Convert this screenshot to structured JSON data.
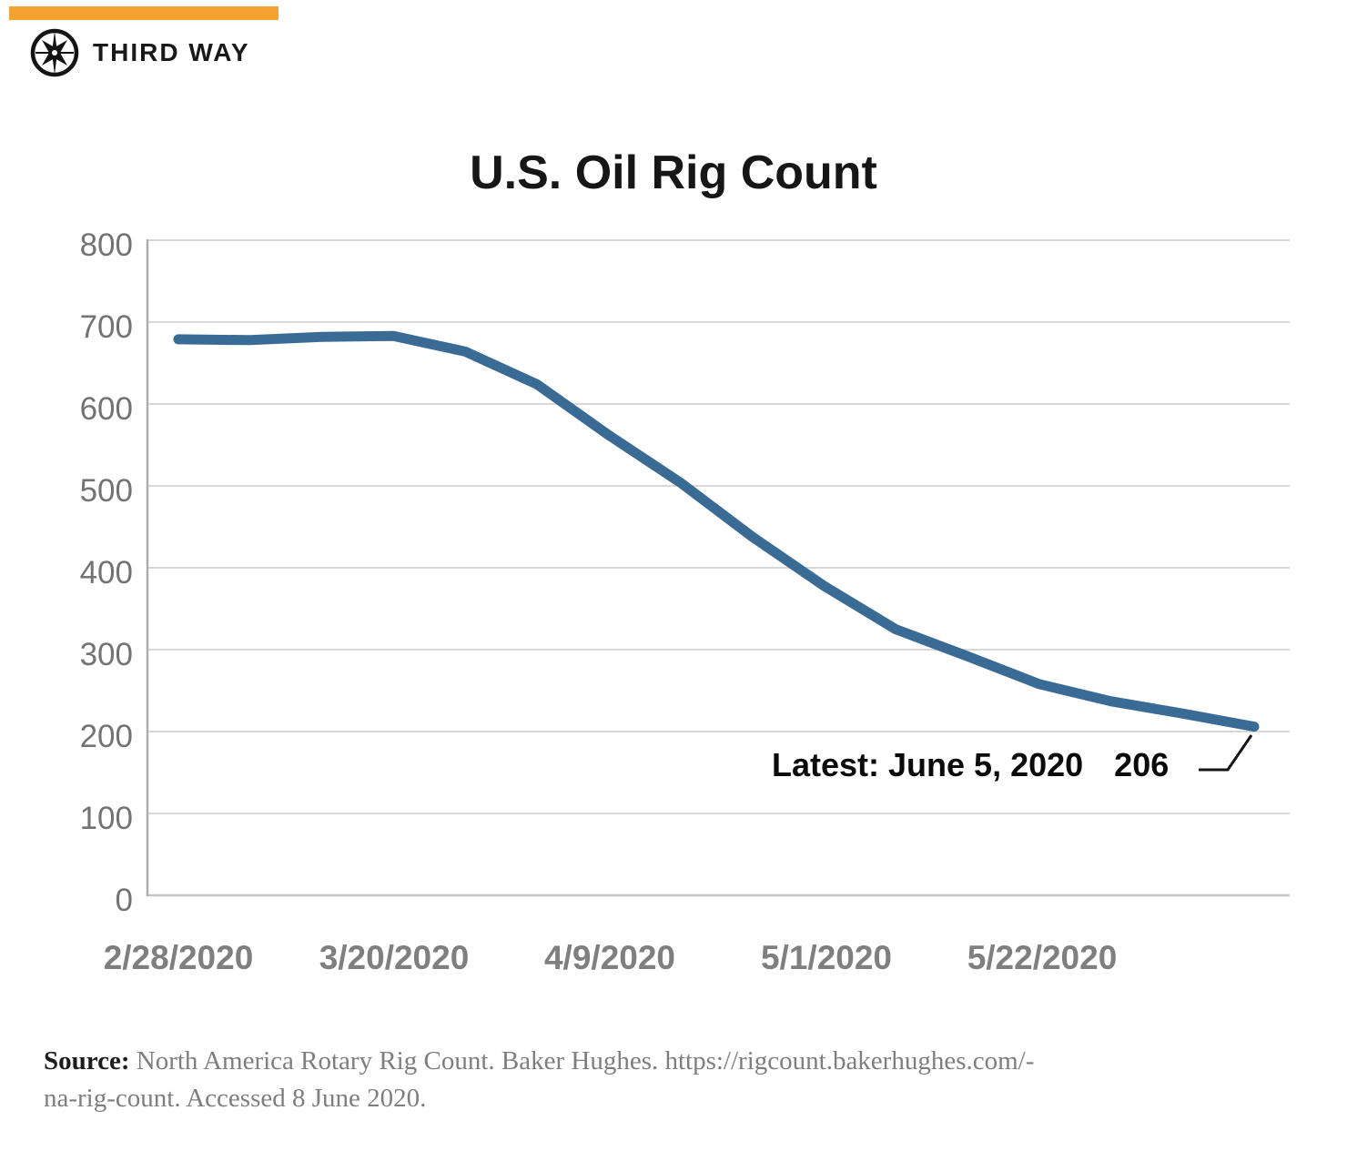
{
  "brand": {
    "name": "THIRD WAY",
    "logo_icon": "compass-icon",
    "accent_color": "#F2A331"
  },
  "chart_data": {
    "type": "line",
    "title": "U.S. Oil Rig Count",
    "x": [
      "2/21/2020",
      "2/28/2020",
      "3/6/2020",
      "3/13/2020",
      "3/20/2020",
      "3/27/2020",
      "4/3/2020",
      "4/9/2020",
      "4/17/2020",
      "4/24/2020",
      "5/1/2020",
      "5/8/2020",
      "5/15/2020",
      "5/22/2020",
      "5/29/2020",
      "6/5/2020"
    ],
    "values": [
      679,
      678,
      682,
      683,
      664,
      624,
      562,
      504,
      438,
      378,
      325,
      292,
      258,
      237,
      222,
      206
    ],
    "x_tick_labels": [
      "2/28/2020",
      "3/20/2020",
      "4/9/2020",
      "5/1/2020",
      "5/22/2020"
    ],
    "y_ticks": [
      0,
      100,
      200,
      300,
      400,
      500,
      600,
      700,
      800
    ],
    "ylim": [
      0,
      800
    ],
    "grid": true,
    "legend": false,
    "line_color": "#3A6B94",
    "grid_color": "#D8D8D8",
    "axis_color": "#ADADAD",
    "y_tick_color": "#737373",
    "x_tick_color": "#7F7F7F",
    "annotation": {
      "label": "Latest: June 5, 2020",
      "value": "206"
    }
  },
  "source": {
    "prefix": "Source:",
    "line1": " North America Rotary Rig Count. Baker Hughes. https://rigcount.bakerhughes.com/-",
    "line2": "na-rig-count. Accessed 8 June 2020."
  }
}
